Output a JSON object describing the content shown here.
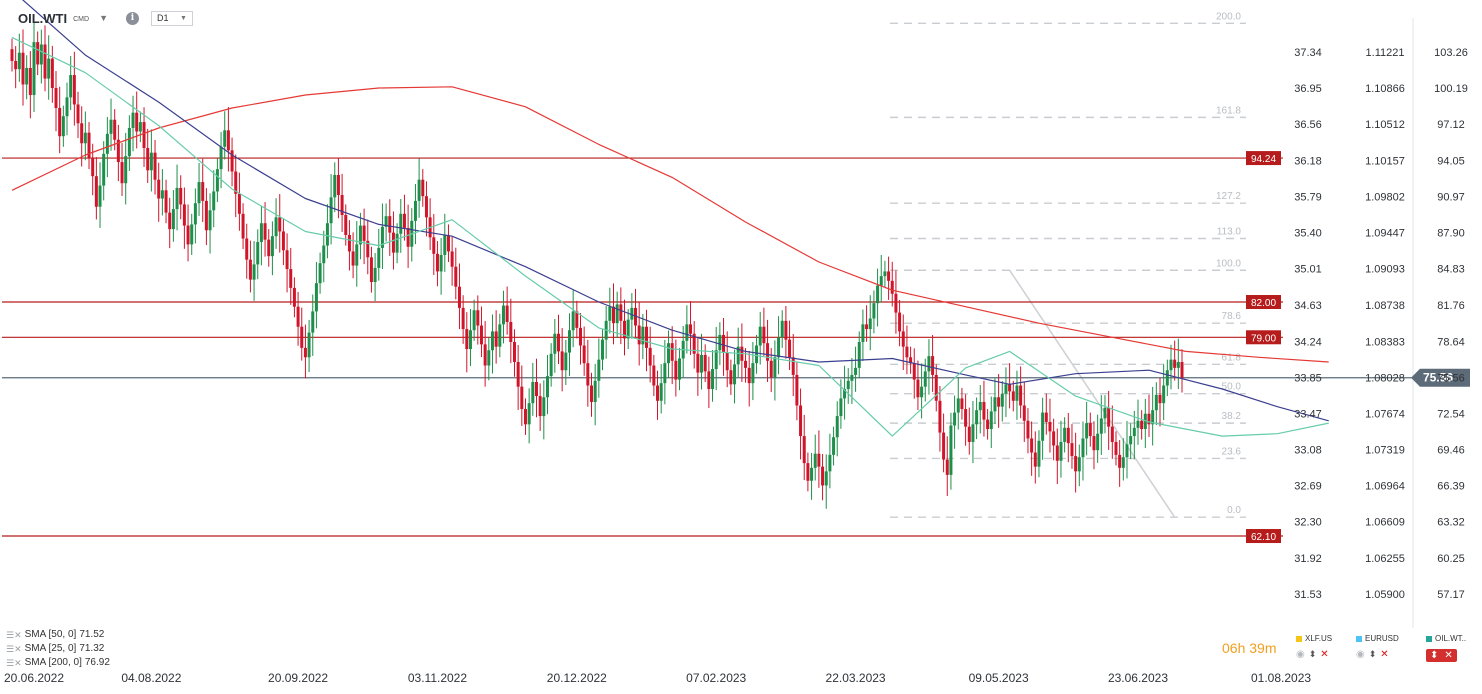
{
  "header": {
    "symbol": "OIL.WTI",
    "symbol_type": "CMD",
    "timeframe": "D1",
    "info_glyph": "i"
  },
  "legend": [
    {
      "label": "SMA [50, 0]",
      "value": "71.52",
      "color": "#3b3f8f"
    },
    {
      "label": "SMA [25, 0]",
      "value": "71.32",
      "color": "#66ccaa"
    },
    {
      "label": "SMA [200, 0]",
      "value": "76.92",
      "color": "#e53935"
    }
  ],
  "countdown": "06h 39m",
  "compare": [
    {
      "name": "XLF.US",
      "color": "#f5c518"
    },
    {
      "name": "EURUSD",
      "color": "#4fc3f7"
    },
    {
      "name": "OIL.WT..",
      "color": "#26a69a"
    }
  ],
  "chart_data": {
    "type": "candlestick",
    "colors": {
      "up": "#1e8f4a",
      "down": "#d0152b",
      "sma50": "#3b3f8f",
      "sma25": "#66ccaa",
      "sma200": "#e53935",
      "level": "#b71c1c"
    },
    "y_range": [
      55.5,
      105.0
    ],
    "price_axis": [
      103.26,
      100.19,
      97.12,
      94.05,
      90.97,
      87.9,
      84.83,
      81.76,
      78.64,
      75.56,
      72.54,
      69.46,
      66.39,
      63.32,
      60.25,
      57.17
    ],
    "secondary_axis_1": [
      "37.34",
      "36.95",
      "36.56",
      "36.18",
      "35.79",
      "35.40",
      "35.01",
      "34.63",
      "34.24",
      "33.85",
      "33.47",
      "33.08",
      "32.69",
      "32.30",
      "31.92",
      "31.53"
    ],
    "secondary_axis_2": [
      "1.11221",
      "1.10866",
      "1.10512",
      "1.10157",
      "1.09802",
      "1.09447",
      "1.09093",
      "1.08738",
      "1.08383",
      "1.08028",
      "1.07674",
      "1.07319",
      "1.06964",
      "1.06609",
      "1.06255",
      "1.05900"
    ],
    "x_labels": [
      "20.06.2022",
      "04.08.2022",
      "20.09.2022",
      "03.11.2022",
      "20.12.2022",
      "07.02.2023",
      "22.03.2023",
      "09.05.2023",
      "23.06.2023",
      "01.08.2023"
    ],
    "current_price": 75.56,
    "horizontal_levels": [
      94.24,
      82.0,
      79.0,
      62.1
    ],
    "fibonacci": {
      "low": 63.7,
      "high": 84.7,
      "levels": [
        {
          "label": "200.0",
          "value": 105.7
        },
        {
          "label": "161.8",
          "value": 97.7
        },
        {
          "label": "127.2",
          "value": 90.4
        },
        {
          "label": "113.0",
          "value": 87.4
        },
        {
          "label": "100.0",
          "value": 84.7
        },
        {
          "label": "78.6",
          "value": 80.2
        },
        {
          "label": "61.8",
          "value": 76.7
        },
        {
          "label": "50.0",
          "value": 74.2
        },
        {
          "label": "38.2",
          "value": 71.7
        },
        {
          "label": "23.6",
          "value": 68.7
        },
        {
          "label": "0.0",
          "value": 63.7
        }
      ]
    },
    "series_close": [
      102.5,
      101.8,
      103.2,
      100.5,
      101.9,
      99.6,
      104.1,
      102.2,
      103.9,
      101.0,
      102.7,
      100.2,
      98.5,
      96.1,
      97.8,
      99.4,
      101.3,
      98.8,
      97.2,
      95.5,
      96.4,
      94.2,
      92.7,
      90.1,
      91.9,
      94.6,
      96.3,
      97.5,
      95.8,
      93.9,
      92.1,
      94.4,
      96.8,
      98.1,
      96.5,
      97.3,
      95.1,
      93.2,
      94.7,
      92.4,
      90.8,
      91.5,
      89.6,
      88.2,
      89.9,
      91.7,
      90.3,
      88.5,
      86.9,
      88.6,
      90.4,
      92.2,
      90.6,
      88.1,
      89.8,
      91.4,
      93.3,
      95.2,
      96.6,
      94.9,
      93.1,
      91.2,
      89.5,
      87.4,
      85.6,
      83.9,
      85.2,
      87.1,
      88.7,
      87.3,
      85.9,
      87.6,
      89.2,
      88.0,
      86.4,
      84.8,
      83.2,
      81.6,
      79.9,
      78.1,
      77.3,
      79.4,
      81.2,
      83.6,
      85.3,
      86.8,
      88.7,
      90.9,
      92.8,
      91.1,
      89.4,
      87.7,
      86.3,
      85.1,
      86.9,
      88.5,
      87.2,
      85.8,
      83.7,
      84.9,
      86.6,
      88.4,
      89.3,
      87.9,
      86.2,
      87.8,
      89.5,
      88.3,
      86.7,
      88.9,
      90.6,
      92.4,
      91.0,
      89.2,
      87.5,
      86.1,
      84.6,
      86.0,
      87.7,
      86.3,
      85.0,
      83.3,
      81.5,
      79.7,
      78.0,
      79.6,
      81.3,
      80.0,
      78.4,
      76.6,
      77.9,
      79.5,
      78.2,
      80.1,
      81.7,
      80.3,
      78.6,
      76.9,
      74.8,
      72.9,
      71.6,
      73.4,
      75.2,
      74.0,
      72.3,
      73.9,
      75.7,
      77.6,
      79.3,
      77.8,
      76.2,
      77.7,
      79.6,
      81.2,
      79.8,
      78.3,
      76.8,
      74.9,
      73.5,
      75.3,
      77.1,
      78.8,
      80.4,
      81.6,
      80.2,
      81.8,
      80.4,
      78.9,
      80.5,
      81.5,
      80.0,
      78.4,
      79.9,
      78.1,
      76.6,
      74.9,
      73.6,
      75.1,
      76.8,
      78.5,
      77.0,
      75.4,
      77.2,
      78.7,
      80.1,
      79.3,
      77.6,
      76.0,
      77.5,
      76.1,
      74.6,
      76.3,
      77.9,
      79.2,
      77.7,
      76.2,
      75.0,
      76.7,
      78.2,
      77.0,
      76.4,
      75.1,
      76.8,
      78.3,
      79.9,
      78.5,
      77.0,
      75.6,
      77.3,
      79.0,
      80.4,
      78.8,
      77.3,
      75.8,
      73.2,
      70.6,
      68.3,
      66.8,
      67.9,
      69.1,
      68.0,
      66.4,
      67.6,
      69.0,
      70.5,
      72.3,
      73.8,
      74.6,
      75.3,
      75.8,
      76.4,
      78.6,
      80.1,
      79.7,
      80.6,
      81.9,
      83.4,
      84.2,
      84.6,
      83.8,
      82.7,
      81.1,
      79.5,
      78.2,
      77.3,
      76.8,
      75.4,
      73.9,
      74.8,
      76.1,
      77.4,
      75.8,
      73.6,
      70.9,
      68.6,
      67.3,
      71.5,
      72.6,
      73.8,
      72.9,
      71.4,
      70.1,
      71.6,
      72.8,
      73.5,
      72.0,
      71.2,
      72.7,
      73.9,
      73.1,
      74.2,
      75.0,
      74.4,
      73.6,
      74.9,
      73.2,
      71.9,
      70.4,
      69.2,
      68.0,
      70.2,
      72.6,
      71.8,
      71.0,
      69.8,
      68.5,
      70.1,
      71.3,
      70.0,
      68.9,
      67.6,
      68.8,
      70.4,
      71.7,
      70.6,
      69.4,
      70.8,
      72.1,
      73.0,
      71.4,
      70.1,
      69.0,
      67.9,
      68.8,
      69.9,
      70.6,
      71.3,
      71.9,
      71.2,
      72.5,
      71.6,
      72.8,
      74.1,
      73.4,
      74.9,
      76.2,
      77.1,
      76.4,
      76.9,
      75.56
    ],
    "sma50": [
      {
        "x": 0,
        "y": 108.5
      },
      {
        "x": 20,
        "y": 103.0
      },
      {
        "x": 40,
        "y": 99.0
      },
      {
        "x": 60,
        "y": 94.5
      },
      {
        "x": 80,
        "y": 90.8
      },
      {
        "x": 100,
        "y": 88.6
      },
      {
        "x": 120,
        "y": 87.6
      },
      {
        "x": 140,
        "y": 85.0
      },
      {
        "x": 160,
        "y": 82.0
      },
      {
        "x": 180,
        "y": 79.6
      },
      {
        "x": 200,
        "y": 77.8
      },
      {
        "x": 220,
        "y": 76.9
      },
      {
        "x": 240,
        "y": 77.2
      },
      {
        "x": 260,
        "y": 75.8
      },
      {
        "x": 272,
        "y": 75.0
      },
      {
        "x": 290,
        "y": 75.9
      },
      {
        "x": 310,
        "y": 76.2
      },
      {
        "x": 330,
        "y": 74.6
      },
      {
        "x": 345,
        "y": 73.1
      },
      {
        "x": 359,
        "y": 71.9
      }
    ],
    "sma25": [
      {
        "x": 0,
        "y": 104.5
      },
      {
        "x": 20,
        "y": 101.5
      },
      {
        "x": 40,
        "y": 97.0
      },
      {
        "x": 60,
        "y": 91.6
      },
      {
        "x": 80,
        "y": 88.0
      },
      {
        "x": 100,
        "y": 86.8
      },
      {
        "x": 120,
        "y": 89.0
      },
      {
        "x": 140,
        "y": 84.2
      },
      {
        "x": 160,
        "y": 79.8
      },
      {
        "x": 180,
        "y": 78.0
      },
      {
        "x": 200,
        "y": 77.6
      },
      {
        "x": 220,
        "y": 76.6
      },
      {
        "x": 240,
        "y": 70.6
      },
      {
        "x": 260,
        "y": 76.4
      },
      {
        "x": 272,
        "y": 77.8
      },
      {
        "x": 290,
        "y": 74.0
      },
      {
        "x": 310,
        "y": 71.8
      },
      {
        "x": 330,
        "y": 70.6
      },
      {
        "x": 345,
        "y": 70.8
      },
      {
        "x": 359,
        "y": 71.7
      }
    ],
    "sma200": [
      {
        "x": 0,
        "y": 91.5
      },
      {
        "x": 20,
        "y": 94.5
      },
      {
        "x": 40,
        "y": 96.8
      },
      {
        "x": 60,
        "y": 98.5
      },
      {
        "x": 80,
        "y": 99.6
      },
      {
        "x": 100,
        "y": 100.2
      },
      {
        "x": 120,
        "y": 100.3
      },
      {
        "x": 140,
        "y": 98.6
      },
      {
        "x": 160,
        "y": 95.4
      },
      {
        "x": 180,
        "y": 92.6
      },
      {
        "x": 200,
        "y": 88.8
      },
      {
        "x": 220,
        "y": 85.4
      },
      {
        "x": 240,
        "y": 83.0
      },
      {
        "x": 260,
        "y": 81.6
      },
      {
        "x": 280,
        "y": 80.2
      },
      {
        "x": 300,
        "y": 79.0
      },
      {
        "x": 320,
        "y": 77.8
      },
      {
        "x": 340,
        "y": 77.3
      },
      {
        "x": 359,
        "y": 76.9
      }
    ],
    "trend_line": [
      {
        "x": 272,
        "y": 84.7
      },
      {
        "x": 317,
        "y": 63.7
      }
    ]
  }
}
